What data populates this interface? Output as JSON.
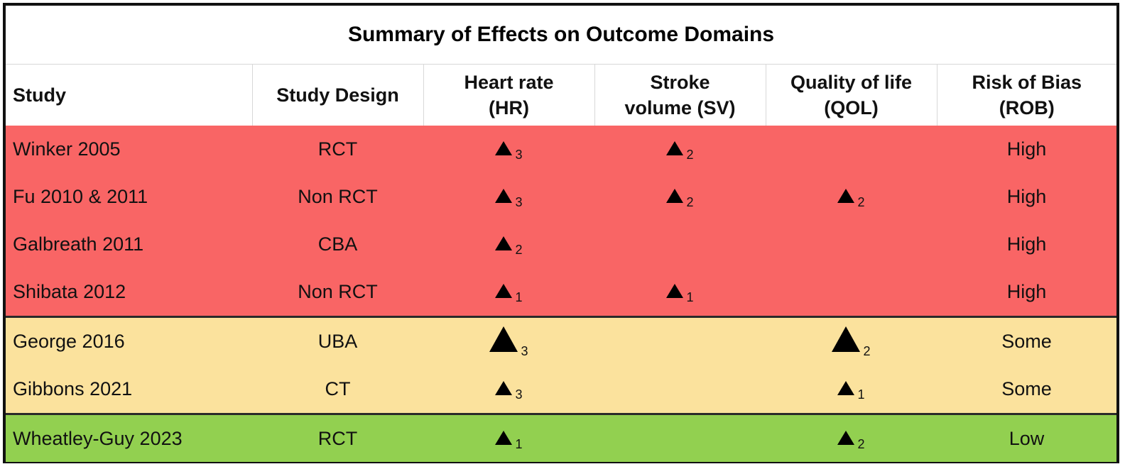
{
  "title": "Summary of Effects on Outcome Domains",
  "headers": {
    "study": "Study",
    "design": "Study Design",
    "hr": [
      "Heart rate",
      "(HR)"
    ],
    "sv": [
      "Stroke",
      "volume (SV)"
    ],
    "qol": [
      "Quality of life",
      "(QOL)"
    ],
    "rob": [
      "Risk of Bias",
      "(ROB)"
    ]
  },
  "rows": [
    {
      "study": "Winker 2005",
      "design": "RCT",
      "hr": "3",
      "sv": "2",
      "qol": "",
      "rob": "High",
      "group": "high"
    },
    {
      "study": "Fu 2010 & 2011",
      "design": "Non RCT",
      "hr": "3",
      "sv": "2",
      "qol": "2",
      "rob": "High",
      "group": "high"
    },
    {
      "study": "Galbreath 2011",
      "design": "CBA",
      "hr": "2",
      "sv": "",
      "qol": "",
      "rob": "High",
      "group": "high"
    },
    {
      "study": "Shibata 2012",
      "design": "Non RCT",
      "hr": "1",
      "sv": "1",
      "qol": "",
      "rob": "High",
      "group": "high"
    },
    {
      "study": "George 2016",
      "design": "UBA",
      "hr": "3",
      "sv": "",
      "qol": "2",
      "rob": "Some",
      "group": "some"
    },
    {
      "study": "Gibbons 2021",
      "design": "CT",
      "hr": "3",
      "sv": "",
      "qol": "1",
      "rob": "Some",
      "group": "some"
    },
    {
      "study": "Wheatley-Guy 2023",
      "design": "RCT",
      "hr": "1",
      "sv": "",
      "qol": "2",
      "rob": "Low",
      "group": "low"
    }
  ],
  "colors": {
    "high": "#f96565",
    "some": "#fbe29d",
    "low": "#92d050"
  },
  "icons": {
    "effect": "triangle-up-icon"
  }
}
